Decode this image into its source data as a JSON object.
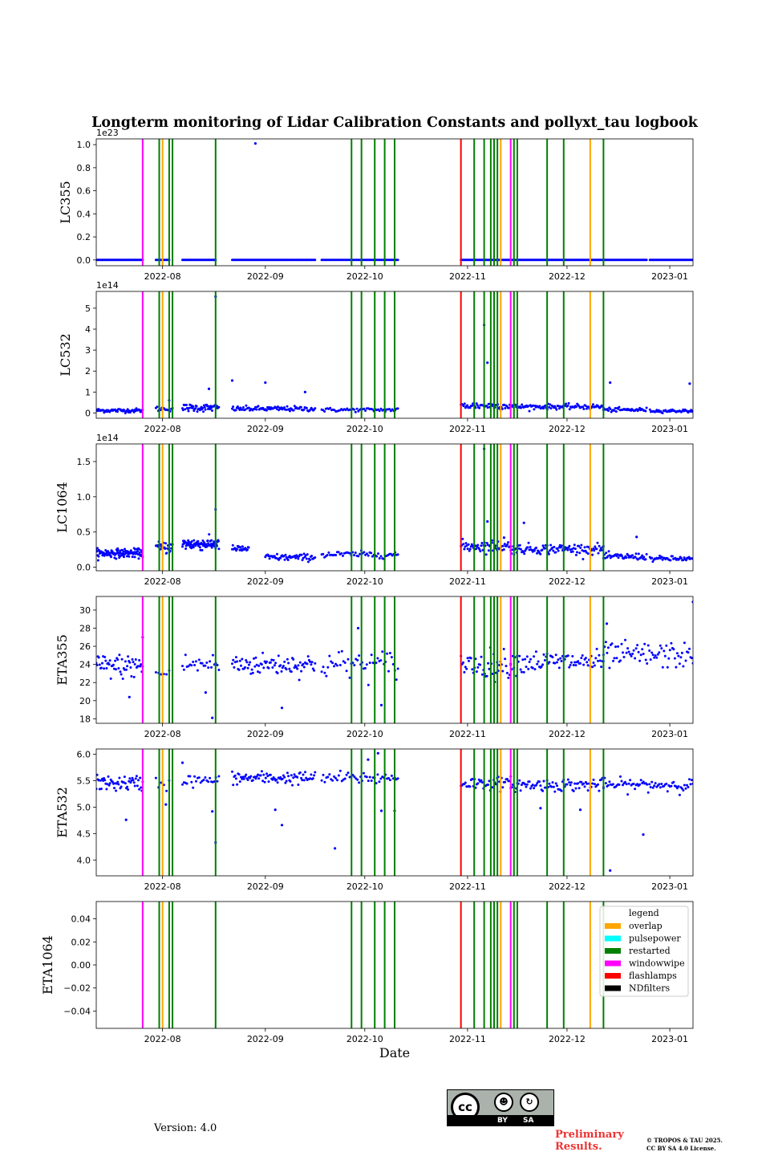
{
  "chart_data": {
    "type": "scatter",
    "title": "Longterm monitoring of Lidar Calibration Constants and pollyxt_tau logbook",
    "xlabel": "Date",
    "xlim": [
      "2022-07-12",
      "2023-01-08"
    ],
    "xticks": [
      "2022-08-01",
      "2022-09-01",
      "2022-10-01",
      "2022-11-01",
      "2022-12-01",
      "2023-01-01"
    ],
    "xtick_labels": [
      "2022-08",
      "2022-09",
      "2022-10",
      "2022-11",
      "2022-12",
      "2023-01"
    ],
    "grid": false,
    "point_color": "#0000ff",
    "legend": {
      "title": "legend",
      "placement": "upper-right of last panel",
      "entries": [
        {
          "name": "overlap",
          "color": "#ffa500"
        },
        {
          "name": "pulsepower",
          "color": "#00ffff"
        },
        {
          "name": "restarted",
          "color": "#008000"
        },
        {
          "name": "windowwipe",
          "color": "#ff00ff"
        },
        {
          "name": "flashlamps",
          "color": "#ff0000"
        },
        {
          "name": "NDfilters",
          "color": "#000000"
        }
      ]
    },
    "events": [
      {
        "date": "2022-07-26",
        "type": "windowwipe"
      },
      {
        "date": "2022-07-31",
        "type": "restarted"
      },
      {
        "date": "2022-08-01",
        "type": "overlap"
      },
      {
        "date": "2022-08-03",
        "type": "restarted"
      },
      {
        "date": "2022-08-04",
        "type": "restarted"
      },
      {
        "date": "2022-08-17",
        "type": "restarted"
      },
      {
        "date": "2022-09-27",
        "type": "restarted"
      },
      {
        "date": "2022-09-30",
        "type": "restarted"
      },
      {
        "date": "2022-10-04",
        "type": "restarted"
      },
      {
        "date": "2022-10-07",
        "type": "restarted"
      },
      {
        "date": "2022-10-10",
        "type": "restarted"
      },
      {
        "date": "2022-10-30",
        "type": "flashlamps"
      },
      {
        "date": "2022-11-03",
        "type": "restarted"
      },
      {
        "date": "2022-11-06",
        "type": "restarted"
      },
      {
        "date": "2022-11-08",
        "type": "restarted"
      },
      {
        "date": "2022-11-09",
        "type": "restarted"
      },
      {
        "date": "2022-11-10",
        "type": "restarted"
      },
      {
        "date": "2022-11-11",
        "type": "overlap"
      },
      {
        "date": "2022-11-14",
        "type": "windowwipe"
      },
      {
        "date": "2022-11-15",
        "type": "restarted"
      },
      {
        "date": "2022-11-16",
        "type": "restarted"
      },
      {
        "date": "2022-11-25",
        "type": "restarted"
      },
      {
        "date": "2022-11-30",
        "type": "restarted"
      },
      {
        "date": "2022-12-08",
        "type": "overlap"
      },
      {
        "date": "2022-12-12",
        "type": "restarted"
      }
    ],
    "panels": [
      {
        "ylabel": "LC355",
        "multiplier": "1e23",
        "ylim": [
          -0.05,
          1.05
        ],
        "yticks": [
          0.0,
          0.2,
          0.4,
          0.6,
          0.8,
          1.0
        ],
        "ytick_labels": [
          "0.0",
          "0.2",
          "0.4",
          "0.6",
          "0.8",
          "1.0"
        ],
        "segments": [
          {
            "start": "2022-07-12",
            "end": "2022-07-26",
            "base": 0.0,
            "noise": 0.0,
            "n": 50
          },
          {
            "start": "2022-07-30",
            "end": "2022-08-03",
            "base": 0.0,
            "noise": 0.0,
            "n": 12
          },
          {
            "start": "2022-08-07",
            "end": "2022-08-17",
            "base": 0.0,
            "noise": 0.0,
            "n": 35
          },
          {
            "start": "2022-08-22",
            "end": "2022-09-16",
            "base": 0.0,
            "noise": 0.0,
            "n": 80
          },
          {
            "start": "2022-09-18",
            "end": "2022-10-11",
            "base": 0.0,
            "noise": 0.0,
            "n": 60
          },
          {
            "start": "2022-10-30",
            "end": "2022-11-14",
            "base": 0.0,
            "noise": 0.0,
            "n": 50
          },
          {
            "start": "2022-11-14",
            "end": "2022-12-25",
            "base": 0.0,
            "noise": 0.0,
            "n": 140
          },
          {
            "start": "2022-12-26",
            "end": "2023-01-08",
            "base": 0.0,
            "noise": 0.0,
            "n": 50
          }
        ],
        "outliers": [
          {
            "date": "2022-08-29",
            "value": 1.01
          }
        ]
      },
      {
        "ylabel": "LC532",
        "multiplier": "1e14",
        "ylim": [
          -0.25,
          5.8
        ],
        "yticks": [
          0,
          1,
          2,
          3,
          4,
          5
        ],
        "ytick_labels": [
          "0",
          "1",
          "2",
          "3",
          "4",
          "5"
        ],
        "segments": [
          {
            "start": "2022-07-12",
            "end": "2022-07-26",
            "base": 0.12,
            "noise": 0.08,
            "n": 60
          },
          {
            "start": "2022-07-30",
            "end": "2022-08-04",
            "base": 0.2,
            "noise": 0.1,
            "n": 15
          },
          {
            "start": "2022-08-07",
            "end": "2022-08-18",
            "base": 0.25,
            "noise": 0.15,
            "n": 55
          },
          {
            "start": "2022-08-22",
            "end": "2022-09-16",
            "base": 0.2,
            "noise": 0.1,
            "n": 90
          },
          {
            "start": "2022-09-18",
            "end": "2022-10-11",
            "base": 0.15,
            "noise": 0.08,
            "n": 55
          },
          {
            "start": "2022-10-30",
            "end": "2022-11-14",
            "base": 0.35,
            "noise": 0.15,
            "n": 55
          },
          {
            "start": "2022-11-14",
            "end": "2022-12-12",
            "base": 0.3,
            "noise": 0.1,
            "n": 100
          },
          {
            "start": "2022-12-12",
            "end": "2022-12-25",
            "base": 0.15,
            "noise": 0.08,
            "n": 45
          },
          {
            "start": "2022-12-26",
            "end": "2023-01-08",
            "base": 0.1,
            "noise": 0.06,
            "n": 45
          }
        ],
        "outliers": [
          {
            "date": "2022-08-17",
            "value": 5.55
          },
          {
            "date": "2022-08-22",
            "value": 1.55
          },
          {
            "date": "2022-09-01",
            "value": 1.45
          },
          {
            "date": "2022-09-13",
            "value": 1.0
          },
          {
            "date": "2022-11-06",
            "value": 4.2
          },
          {
            "date": "2022-11-07",
            "value": 2.4
          },
          {
            "date": "2022-12-14",
            "value": 1.45
          },
          {
            "date": "2023-01-07",
            "value": 1.4
          },
          {
            "date": "2022-08-15",
            "value": 1.15
          },
          {
            "date": "2022-08-03",
            "value": 0.6
          }
        ]
      },
      {
        "ylabel": "LC1064",
        "multiplier": "1e14",
        "ylim": [
          -0.05,
          1.75
        ],
        "yticks": [
          0.0,
          0.5,
          1.0,
          1.5
        ],
        "ytick_labels": [
          "0.0",
          "0.5",
          "1.0",
          "1.5"
        ],
        "segments": [
          {
            "start": "2022-07-12",
            "end": "2022-07-26",
            "base": 0.2,
            "noise": 0.05,
            "n": 120
          },
          {
            "start": "2022-07-30",
            "end": "2022-08-04",
            "base": 0.28,
            "noise": 0.07,
            "n": 30
          },
          {
            "start": "2022-08-07",
            "end": "2022-08-18",
            "base": 0.33,
            "noise": 0.07,
            "n": 90
          },
          {
            "start": "2022-08-22",
            "end": "2022-08-27",
            "base": 0.26,
            "noise": 0.04,
            "n": 25
          },
          {
            "start": "2022-09-01",
            "end": "2022-09-16",
            "base": 0.14,
            "noise": 0.04,
            "n": 60
          },
          {
            "start": "2022-09-18",
            "end": "2022-10-11",
            "base": 0.18,
            "noise": 0.04,
            "n": 55
          },
          {
            "start": "2022-10-30",
            "end": "2022-11-14",
            "base": 0.3,
            "noise": 0.07,
            "n": 60
          },
          {
            "start": "2022-11-14",
            "end": "2022-12-12",
            "base": 0.26,
            "noise": 0.06,
            "n": 110
          },
          {
            "start": "2022-12-12",
            "end": "2022-12-25",
            "base": 0.15,
            "noise": 0.04,
            "n": 50
          },
          {
            "start": "2022-12-26",
            "end": "2023-01-08",
            "base": 0.12,
            "noise": 0.03,
            "n": 45
          }
        ],
        "outliers": [
          {
            "date": "2022-08-17",
            "value": 0.82
          },
          {
            "date": "2022-11-06",
            "value": 1.68
          },
          {
            "date": "2022-11-07",
            "value": 0.65
          },
          {
            "date": "2022-11-18",
            "value": 0.63
          },
          {
            "date": "2022-11-12",
            "value": 0.42
          },
          {
            "date": "2022-12-22",
            "value": 0.43
          }
        ]
      },
      {
        "ylabel": "ETA355",
        "multiplier": "",
        "ylim": [
          17.5,
          31.5
        ],
        "yticks": [
          18,
          20,
          22,
          24,
          26,
          28,
          30
        ],
        "ytick_labels": [
          "18",
          "20",
          "22",
          "24",
          "26",
          "28",
          "30"
        ],
        "segments": [
          {
            "start": "2022-07-12",
            "end": "2022-07-26",
            "base": 23.8,
            "noise": 1.1,
            "n": 55
          },
          {
            "start": "2022-07-30",
            "end": "2022-08-03",
            "base": 23.0,
            "noise": 0.6,
            "n": 6
          },
          {
            "start": "2022-08-07",
            "end": "2022-08-18",
            "base": 24.0,
            "noise": 1.0,
            "n": 25
          },
          {
            "start": "2022-08-22",
            "end": "2022-09-16",
            "base": 24.0,
            "noise": 1.0,
            "n": 85
          },
          {
            "start": "2022-09-18",
            "end": "2022-10-11",
            "base": 24.0,
            "noise": 1.3,
            "n": 50
          },
          {
            "start": "2022-10-30",
            "end": "2022-11-14",
            "base": 24.0,
            "noise": 1.3,
            "n": 45
          },
          {
            "start": "2022-11-14",
            "end": "2022-12-12",
            "base": 24.3,
            "noise": 1.0,
            "n": 85
          },
          {
            "start": "2022-12-12",
            "end": "2023-01-08",
            "base": 25.0,
            "noise": 1.2,
            "n": 75
          }
        ],
        "outliers": [
          {
            "date": "2022-07-26",
            "value": 27.0
          },
          {
            "date": "2022-07-22",
            "value": 20.4
          },
          {
            "date": "2022-08-16",
            "value": 18.1
          },
          {
            "date": "2022-09-06",
            "value": 19.2
          },
          {
            "date": "2022-09-29",
            "value": 28.0
          },
          {
            "date": "2022-10-06",
            "value": 19.5
          },
          {
            "date": "2022-12-13",
            "value": 28.5
          },
          {
            "date": "2023-01-08",
            "value": 30.9
          },
          {
            "date": "2022-08-14",
            "value": 20.9
          }
        ]
      },
      {
        "ylabel": "ETA532",
        "multiplier": "",
        "ylim": [
          3.7,
          6.1
        ],
        "yticks": [
          4.0,
          4.5,
          5.0,
          5.5,
          6.0
        ],
        "ytick_labels": [
          "4.0",
          "4.5",
          "5.0",
          "5.5",
          "6.0"
        ],
        "segments": [
          {
            "start": "2022-07-12",
            "end": "2022-07-26",
            "base": 5.45,
            "noise": 0.12,
            "n": 55
          },
          {
            "start": "2022-07-30",
            "end": "2022-08-03",
            "base": 5.45,
            "noise": 0.15,
            "n": 6
          },
          {
            "start": "2022-08-07",
            "end": "2022-08-18",
            "base": 5.5,
            "noise": 0.1,
            "n": 25
          },
          {
            "start": "2022-08-22",
            "end": "2022-09-16",
            "base": 5.55,
            "noise": 0.1,
            "n": 85
          },
          {
            "start": "2022-09-18",
            "end": "2022-10-11",
            "base": 5.55,
            "noise": 0.1,
            "n": 50
          },
          {
            "start": "2022-10-30",
            "end": "2022-11-14",
            "base": 5.45,
            "noise": 0.1,
            "n": 45
          },
          {
            "start": "2022-11-14",
            "end": "2022-12-12",
            "base": 5.42,
            "noise": 0.1,
            "n": 85
          },
          {
            "start": "2022-12-12",
            "end": "2023-01-08",
            "base": 5.42,
            "noise": 0.1,
            "n": 75
          }
        ],
        "outliers": [
          {
            "date": "2022-07-21",
            "value": 4.76
          },
          {
            "date": "2022-08-02",
            "value": 5.05
          },
          {
            "date": "2022-08-16",
            "value": 4.92
          },
          {
            "date": "2022-08-17",
            "value": 4.33
          },
          {
            "date": "2022-09-06",
            "value": 4.66
          },
          {
            "date": "2022-09-04",
            "value": 4.95
          },
          {
            "date": "2022-09-22",
            "value": 4.22
          },
          {
            "date": "2022-10-06",
            "value": 4.93
          },
          {
            "date": "2022-10-10",
            "value": 4.93
          },
          {
            "date": "2022-11-23",
            "value": 4.98
          },
          {
            "date": "2022-12-14",
            "value": 3.8
          },
          {
            "date": "2022-12-24",
            "value": 4.48
          },
          {
            "date": "2022-12-05",
            "value": 4.95
          },
          {
            "date": "2022-08-07",
            "value": 5.84
          },
          {
            "date": "2022-10-02",
            "value": 5.9
          },
          {
            "date": "2022-10-05",
            "value": 6.02
          }
        ]
      },
      {
        "ylabel": "ETA1064",
        "multiplier": "",
        "ylim": [
          -0.055,
          0.055
        ],
        "yticks": [
          -0.04,
          -0.02,
          0.0,
          0.02,
          0.04
        ],
        "ytick_labels": [
          "−0.04",
          "−0.02",
          "0.00",
          "0.02",
          "0.04"
        ],
        "segments": [],
        "outliers": []
      }
    ]
  },
  "footer": {
    "version": "Version: 4.0",
    "license_badge": {
      "by": "BY",
      "sa": "SA",
      "cc": "cc"
    },
    "preliminary_line1": "Preliminary",
    "preliminary_line2": "Results.",
    "copyright_line1": "© TROPOS & TAU 2025.",
    "copyright_line2": "CC BY SA 4.0 License."
  }
}
